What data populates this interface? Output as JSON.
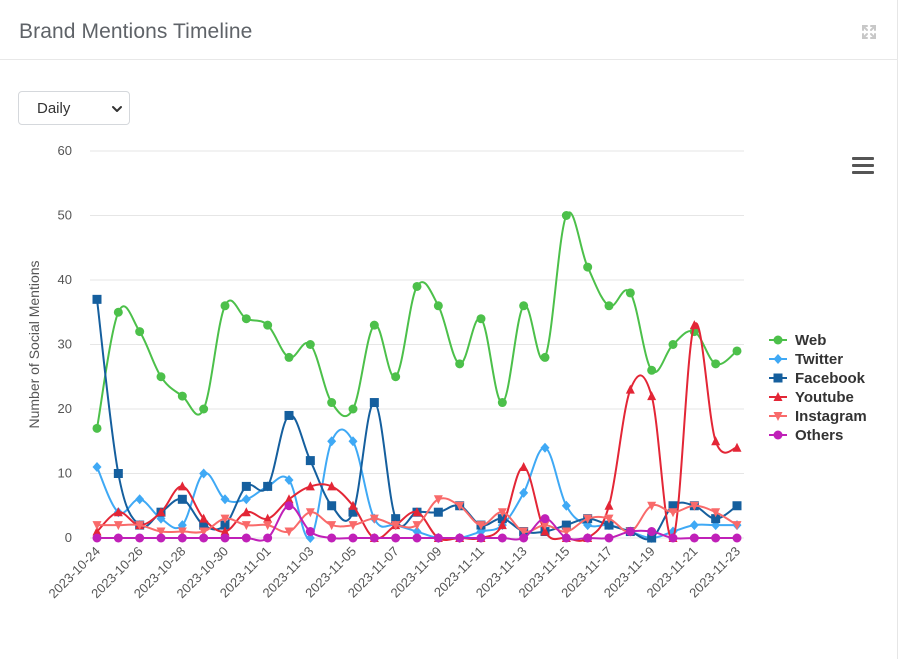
{
  "header": {
    "title": "Brand Mentions Timeline",
    "expand_icon": "expand-arrows-icon"
  },
  "controls": {
    "interval_select": {
      "selected": "Daily"
    },
    "menu_icon": "hamburger-menu-icon"
  },
  "chart_data": {
    "type": "line",
    "ylabel": "Number of Social Mentions",
    "ylim": [
      0,
      60
    ],
    "yticks": [
      0,
      10,
      20,
      30,
      40,
      50,
      60
    ],
    "x": [
      "2023-10-24",
      "2023-10-25",
      "2023-10-26",
      "2023-10-27",
      "2023-10-28",
      "2023-10-29",
      "2023-10-30",
      "2023-10-31",
      "2023-11-01",
      "2023-11-02",
      "2023-11-03",
      "2023-11-04",
      "2023-11-05",
      "2023-11-06",
      "2023-11-07",
      "2023-11-08",
      "2023-11-09",
      "2023-11-10",
      "2023-11-11",
      "2023-11-12",
      "2023-11-13",
      "2023-11-14",
      "2023-11-15",
      "2023-11-16",
      "2023-11-17",
      "2023-11-18",
      "2023-11-19",
      "2023-11-20",
      "2023-11-21",
      "2023-11-22",
      "2023-11-23"
    ],
    "xtick_labels": [
      "2023-10-24",
      "2023-10-26",
      "2023-10-28",
      "2023-10-30",
      "2023-11-01",
      "2023-11-03",
      "2023-11-05",
      "2023-11-07",
      "2023-11-09",
      "2023-11-11",
      "2023-11-13",
      "2023-11-15",
      "2023-11-17",
      "2023-11-19",
      "2023-11-21",
      "2023-11-23"
    ],
    "grid": "horizontal",
    "legend_position": "right",
    "series": [
      {
        "name": "Web",
        "color": "#4cc04a",
        "marker": "circle",
        "values": [
          17,
          35,
          32,
          25,
          22,
          20,
          36,
          34,
          33,
          28,
          30,
          21,
          20,
          33,
          25,
          39,
          36,
          27,
          34,
          21,
          36,
          28,
          50,
          42,
          36,
          38,
          26,
          30,
          32,
          27,
          29
        ]
      },
      {
        "name": "Twitter",
        "color": "#3fa9f5",
        "marker": "diamond",
        "values": [
          11,
          4,
          6,
          3,
          2,
          10,
          6,
          6,
          8,
          9,
          0,
          15,
          15,
          3,
          2,
          1,
          0,
          0,
          1,
          2,
          7,
          14,
          5,
          2,
          2,
          1,
          0,
          1,
          2,
          2,
          2
        ]
      },
      {
        "name": "Facebook",
        "color": "#155f9e",
        "marker": "square",
        "values": [
          37,
          10,
          2,
          4,
          6,
          2,
          2,
          8,
          8,
          19,
          12,
          5,
          4,
          21,
          3,
          4,
          4,
          5,
          2,
          3,
          1,
          1,
          2,
          3,
          2,
          1,
          0,
          5,
          5,
          3,
          5
        ]
      },
      {
        "name": "Youtube",
        "color": "#e32636",
        "marker": "triangle",
        "values": [
          1,
          4,
          2,
          4,
          8,
          3,
          1,
          4,
          3,
          6,
          8,
          8,
          5,
          0,
          2,
          4,
          0,
          0,
          0,
          2,
          11,
          1,
          0,
          0,
          5,
          23,
          22,
          0,
          33,
          15,
          14
        ]
      },
      {
        "name": "Instagram",
        "color": "#f96a6a",
        "marker": "triangle-down",
        "values": [
          2,
          2,
          2,
          1,
          1,
          1,
          3,
          2,
          2,
          1,
          4,
          2,
          2,
          3,
          2,
          2,
          6,
          5,
          2,
          4,
          1,
          2,
          1,
          3,
          3,
          1,
          5,
          4,
          5,
          4,
          2
        ]
      },
      {
        "name": "Others",
        "color": "#c020b8",
        "marker": "circle",
        "values": [
          0,
          0,
          0,
          0,
          0,
          0,
          0,
          0,
          0,
          5,
          1,
          0,
          0,
          0,
          0,
          0,
          0,
          0,
          0,
          0,
          0,
          3,
          0,
          0,
          0,
          1,
          1,
          0,
          0,
          0,
          0
        ]
      }
    ]
  }
}
